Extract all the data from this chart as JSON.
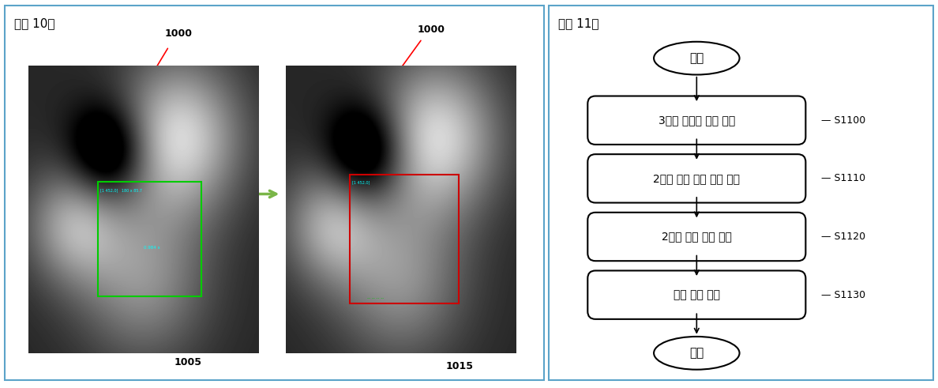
{
  "title_left": "【도 10】",
  "title_right": "【도 11】",
  "label_1000_left": "1000",
  "label_1005": "1005",
  "label_1000_right": "1000",
  "label_1015": "1015",
  "flowchart": {
    "start_text": "시작",
    "end_text": "종료",
    "steps": [
      {
        "text": "3차원 무결점 영상 획득",
        "label": "S1100"
      },
      {
        "text": "2차원 부품 검사 영상 획득",
        "label": "S1110"
      },
      {
        "text": "2차원 기준 영상 생성",
        "label": "S1120"
      },
      {
        "text": "부품 결합 판단",
        "label": "S1130"
      }
    ]
  },
  "border_color": "#5ba3c9",
  "bg_color": "#ffffff",
  "text_color": "#000000",
  "arrow_color": "#7ab648",
  "double_arrow_color": "#7ab648"
}
